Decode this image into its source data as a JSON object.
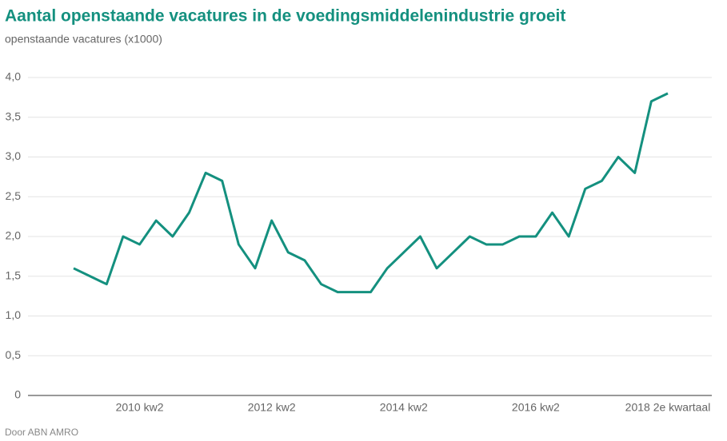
{
  "chart_data": {
    "type": "line",
    "title": "Aantal openstaande vacatures in de voedingsmiddelenindustrie groeit",
    "subtitle": "openstaande vacatures (x1000)",
    "source": "Door ABN AMRO",
    "categories": [
      null,
      null,
      null,
      null,
      "2010 kw2",
      null,
      null,
      null,
      null,
      null,
      null,
      null,
      "2012 kw2",
      null,
      null,
      null,
      null,
      null,
      null,
      null,
      "2014 kw2",
      null,
      null,
      null,
      null,
      null,
      null,
      null,
      "2016 kw2",
      null,
      null,
      null,
      null,
      null,
      null,
      null,
      "2018 2e kwartaal"
    ],
    "series": [
      {
        "name": "openstaande vacatures",
        "color": "#14907f",
        "values": [
          1.6,
          1.5,
          1.4,
          2.0,
          1.9,
          2.2,
          2.0,
          2.3,
          2.8,
          2.7,
          1.9,
          1.6,
          2.2,
          1.8,
          1.7,
          1.4,
          1.3,
          1.3,
          1.3,
          1.6,
          1.8,
          2.0,
          1.6,
          1.8,
          2.0,
          1.9,
          1.9,
          2.0,
          2.0,
          2.3,
          2.0,
          2.6,
          2.7,
          3.0,
          2.8,
          3.7,
          3.8
        ]
      }
    ],
    "ylim": [
      0,
      4
    ],
    "yticks": [
      0,
      {
        "value": 0.5,
        "label": "0,5"
      },
      {
        "value": 1,
        "label": "1,0"
      },
      {
        "value": 1.5,
        "label": "1,5"
      },
      {
        "value": 2,
        "label": "2,0"
      },
      {
        "value": 2.5,
        "label": "2,5"
      },
      {
        "value": 3,
        "label": "3,0"
      },
      {
        "value": 3.5,
        "label": "3,5"
      },
      {
        "value": 4,
        "label": "4,0"
      }
    ],
    "grid": true
  }
}
